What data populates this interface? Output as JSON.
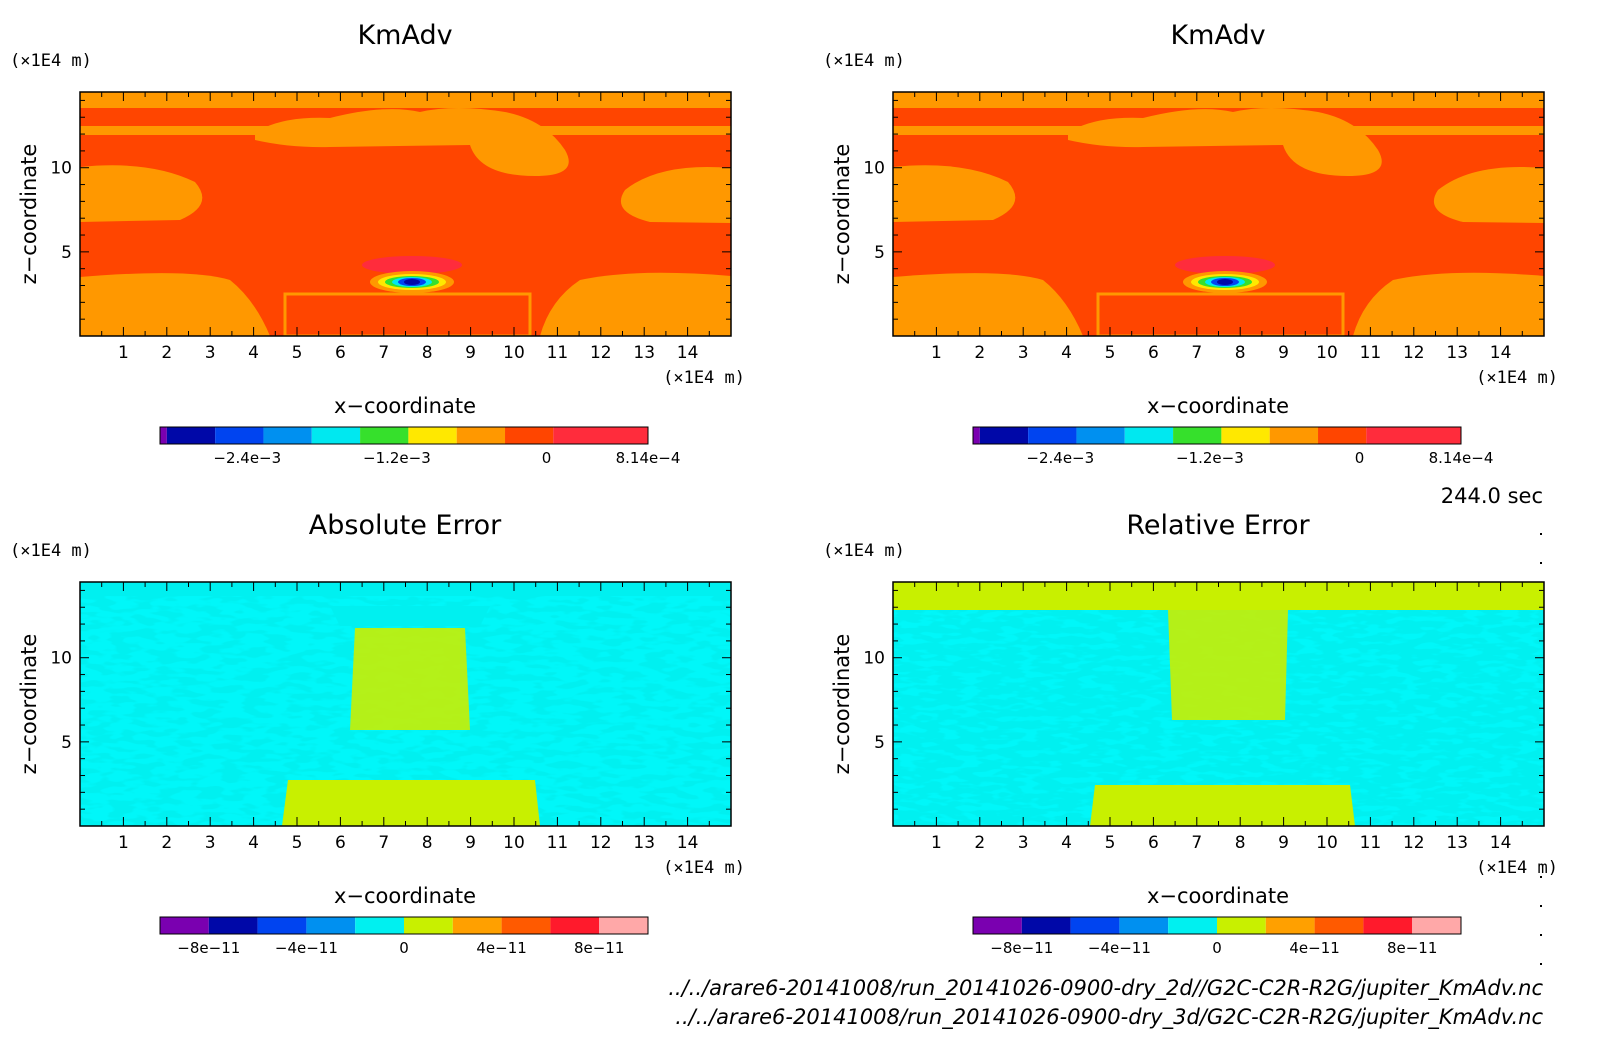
{
  "time_label": "244.0 sec",
  "file_paths": [
    "../../arare6-20141008/run_20141026-0900-dry_2d//G2C-C2R-R2G/jupiter_KmAdv.nc",
    "../../arare6-20141008/run_20141026-0900-dry_3d/G2C-C2R-R2G/jupiter_KmAdv.nc"
  ],
  "colors": {
    "kmadv_levels": [
      "#7a00b0",
      "#0008a8",
      "#0044f0",
      "#0090f0",
      "#00e8f0",
      "#36e02c",
      "#ffe800",
      "#ff9800",
      "#ff4500",
      "#ff2c3c"
    ],
    "error_levels": [
      "#7a00b0",
      "#0008a8",
      "#0044f0",
      "#0090f0",
      "#00f0f0",
      "#c8f000",
      "#ffa000",
      "#ff5a00",
      "#ff1a2c",
      "#ffa8a8"
    ]
  },
  "chart_data": [
    {
      "type": "heatmap",
      "title": "KmAdv",
      "xlabel": "x−coordinate",
      "ylabel": "z−coordinate",
      "x_unit": "(×1E4 m)",
      "y_unit": "(×1E4 m)",
      "xlim": [
        0,
        15
      ],
      "ylim": [
        0,
        14.5
      ],
      "xticks": [
        "1",
        "2",
        "3",
        "4",
        "5",
        "6",
        "7",
        "8",
        "9",
        "10",
        "11",
        "12",
        "13",
        "14"
      ],
      "yticks": [
        "5",
        "10"
      ],
      "colorbar_ticks": [
        "−2.4e−3",
        "−1.2e−3",
        "0",
        "8.14e−4"
      ],
      "colorbar_range": [
        -0.0031,
        0.000814
      ]
    },
    {
      "type": "heatmap",
      "title": "KmAdv",
      "xlabel": "x−coordinate",
      "ylabel": "z−coordinate",
      "x_unit": "(×1E4 m)",
      "y_unit": "(×1E4 m)",
      "xlim": [
        0,
        15
      ],
      "ylim": [
        0,
        14.5
      ],
      "xticks": [
        "1",
        "2",
        "3",
        "4",
        "5",
        "6",
        "7",
        "8",
        "9",
        "10",
        "11",
        "12",
        "13",
        "14"
      ],
      "yticks": [
        "5",
        "10"
      ],
      "colorbar_ticks": [
        "−2.4e−3",
        "−1.2e−3",
        "0",
        "8.14e−4"
      ],
      "colorbar_range": [
        -0.0031,
        0.000814
      ]
    },
    {
      "type": "heatmap",
      "title": "Absolute Error",
      "xlabel": "x−coordinate",
      "ylabel": "z−coordinate",
      "x_unit": "(×1E4 m)",
      "y_unit": "(×1E4 m)",
      "xlim": [
        0,
        15
      ],
      "ylim": [
        0,
        14.5
      ],
      "xticks": [
        "1",
        "2",
        "3",
        "4",
        "5",
        "6",
        "7",
        "8",
        "9",
        "10",
        "11",
        "12",
        "13",
        "14"
      ],
      "yticks": [
        "5",
        "10"
      ],
      "colorbar_ticks": [
        "−8e−11",
        "−4e−11",
        "0",
        "4e−11",
        "8e−11"
      ],
      "colorbar_range": [
        -1e-10,
        1e-10
      ]
    },
    {
      "type": "heatmap",
      "title": "Relative Error",
      "xlabel": "x−coordinate",
      "ylabel": "z−coordinate",
      "x_unit": "(×1E4 m)",
      "y_unit": "(×1E4 m)",
      "xlim": [
        0,
        15
      ],
      "ylim": [
        0,
        14.5
      ],
      "xticks": [
        "1",
        "2",
        "3",
        "4",
        "5",
        "6",
        "7",
        "8",
        "9",
        "10",
        "11",
        "12",
        "13",
        "14"
      ],
      "yticks": [
        "5",
        "10"
      ],
      "colorbar_ticks": [
        "−8e−11",
        "−4e−11",
        "0",
        "4e−11",
        "8e−11"
      ],
      "colorbar_range": [
        -1e-10,
        1e-10
      ]
    }
  ]
}
